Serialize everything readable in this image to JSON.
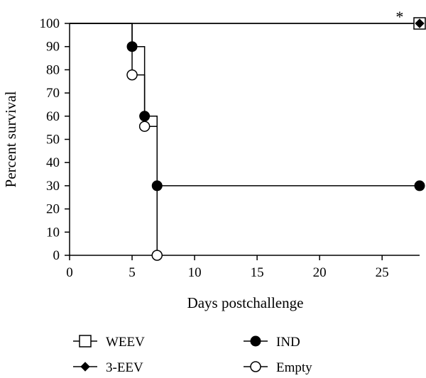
{
  "chart_data": {
    "type": "line",
    "subtype": "kaplan-meier-survival",
    "title": "",
    "xlabel": "Days postchallenge",
    "ylabel": "Percent survival",
    "xlim": [
      0,
      28
    ],
    "ylim": [
      0,
      100
    ],
    "xticks": [
      0,
      5,
      10,
      15,
      20,
      25
    ],
    "yticks": [
      0,
      10,
      20,
      30,
      40,
      50,
      60,
      70,
      80,
      90,
      100
    ],
    "grid": false,
    "legend_position": "bottom",
    "annotation": "*",
    "series": [
      {
        "name": "WEEV",
        "marker": "open-square",
        "color": "#000000",
        "steps": [
          [
            0,
            100
          ],
          [
            28,
            100
          ]
        ],
        "points": [
          [
            28,
            100
          ]
        ]
      },
      {
        "name": "3-EEV",
        "marker": "filled-diamond",
        "color": "#000000",
        "steps": [
          [
            0,
            100
          ],
          [
            28,
            100
          ]
        ],
        "points": [
          [
            28,
            100
          ]
        ]
      },
      {
        "name": "IND",
        "marker": "filled-circle",
        "color": "#000000",
        "steps": [
          [
            0,
            100
          ],
          [
            5,
            100
          ],
          [
            5,
            90
          ],
          [
            6,
            90
          ],
          [
            6,
            60
          ],
          [
            7,
            60
          ],
          [
            7,
            30
          ],
          [
            28,
            30
          ]
        ],
        "points": [
          [
            5,
            90
          ],
          [
            6,
            60
          ],
          [
            7,
            30
          ],
          [
            28,
            30
          ]
        ]
      },
      {
        "name": "Empty",
        "marker": "open-circle",
        "color": "#000000",
        "steps": [
          [
            0,
            100
          ],
          [
            5,
            100
          ],
          [
            5,
            77.8
          ],
          [
            6,
            77.8
          ],
          [
            6,
            55.6
          ],
          [
            7,
            55.6
          ],
          [
            7,
            0
          ]
        ],
        "points": [
          [
            5,
            77.8
          ],
          [
            6,
            55.6
          ],
          [
            7,
            0
          ]
        ]
      }
    ],
    "legend_order": [
      "WEEV",
      "IND",
      "3-EEV",
      "Empty"
    ]
  }
}
